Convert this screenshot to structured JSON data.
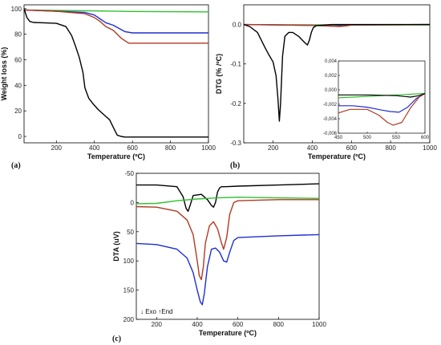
{
  "colors": {
    "black": "#000000",
    "green": "#2fc02f",
    "blue": "#1f2fd0",
    "red": "#b03a22"
  },
  "chart_data": [
    {
      "id": "a",
      "type": "line",
      "panel_label": "(a)",
      "xlabel": "Temperature (ºC)",
      "ylabel": "Weight loss (%)",
      "xlim": [
        30,
        1000
      ],
      "ylim": [
        -5,
        103
      ],
      "xticks": [
        200,
        400,
        600,
        800,
        1000
      ],
      "yticks": [
        0,
        20,
        40,
        60,
        80,
        100
      ],
      "series": [
        {
          "color": "green",
          "x": [
            30,
            200,
            400,
            600,
            800,
            1000
          ],
          "y": [
            99,
            98.6,
            98.2,
            97.8,
            97.6,
            97.5
          ]
        },
        {
          "color": "blue",
          "x": [
            30,
            200,
            350,
            400,
            430,
            460,
            500,
            560,
            600,
            800,
            1000
          ],
          "y": [
            99,
            98,
            97,
            95,
            92,
            89,
            87,
            82,
            81,
            81,
            81
          ]
        },
        {
          "color": "red",
          "x": [
            30,
            200,
            350,
            400,
            430,
            460,
            500,
            540,
            580,
            600,
            800,
            1000
          ],
          "y": [
            99,
            98,
            96,
            93,
            90,
            86,
            83,
            77,
            73,
            73,
            73,
            73
          ]
        },
        {
          "color": "black",
          "x": [
            30,
            45,
            60,
            80,
            120,
            200,
            250,
            280,
            300,
            320,
            340,
            350,
            370,
            390,
            420,
            450,
            480,
            500,
            520,
            540,
            560,
            600,
            800,
            1000
          ],
          "y": [
            100,
            93,
            90,
            89.2,
            89,
            88.5,
            86,
            79,
            71,
            62,
            50,
            38,
            30,
            26,
            21,
            17,
            13,
            7,
            1,
            0,
            -0.5,
            -0.5,
            -0.5,
            -0.5
          ]
        }
      ]
    },
    {
      "id": "b",
      "type": "line",
      "panel_label": "(b)",
      "xlabel": "Temperature (ºC)",
      "ylabel": "DTG (% /ºC)",
      "xlim": [
        50,
        1000
      ],
      "ylim": [
        -0.3,
        0.05
      ],
      "xticks": [
        200,
        400,
        600,
        800,
        1000
      ],
      "yticks": [
        0,
        -0.1,
        -0.2,
        -0.3
      ],
      "ytick_labels": [
        "0.0",
        "-0.1",
        "-0.2",
        "-0.3"
      ],
      "series": [
        {
          "color": "green",
          "x": [
            50,
            400,
            600,
            1000
          ],
          "y": [
            0,
            -0.001,
            -0.001,
            -0.001
          ]
        },
        {
          "color": "blue",
          "x": [
            50,
            400,
            500,
            560,
            600,
            1000
          ],
          "y": [
            0,
            -0.002,
            -0.004,
            -0.003,
            -0.001,
            0
          ]
        },
        {
          "color": "red",
          "x": [
            50,
            400,
            500,
            540,
            580,
            600,
            1000
          ],
          "y": [
            0,
            -0.002,
            -0.004,
            -0.005,
            -0.003,
            -0.001,
            0
          ]
        },
        {
          "color": "black",
          "x": [
            50,
            80,
            120,
            160,
            180,
            200,
            215,
            225,
            232,
            238,
            248,
            260,
            280,
            300,
            330,
            360,
            375,
            385,
            395,
            405,
            420,
            440,
            470,
            500,
            550,
            600,
            1000
          ],
          "y": [
            0,
            -0.005,
            -0.02,
            -0.06,
            -0.078,
            -0.095,
            -0.13,
            -0.19,
            -0.245,
            -0.2,
            -0.08,
            -0.03,
            -0.02,
            -0.02,
            -0.03,
            -0.045,
            -0.052,
            -0.04,
            -0.02,
            -0.008,
            -0.003,
            -0.002,
            -0.001,
            0,
            0,
            0,
            0
          ]
        }
      ],
      "inset": {
        "xlim": [
          450,
          600
        ],
        "ylim": [
          -0.006,
          0.004
        ],
        "xticks": [
          450,
          500,
          550,
          600
        ],
        "yticks": [
          0.004,
          0.002,
          0,
          -0.002,
          -0.004,
          -0.006
        ],
        "ytick_labels": [
          "0,004",
          "0,002",
          "0,000",
          "-0,002",
          "-0,004",
          "-0,006"
        ],
        "series": [
          {
            "color": "green",
            "x": [
              450,
              500,
              550,
              600
            ],
            "y": [
              -0.0011,
              -0.0009,
              -0.0007,
              -0.0005
            ]
          },
          {
            "color": "blue",
            "x": [
              450,
              475,
              500,
              525,
              540,
              555,
              570,
              585,
              600
            ],
            "y": [
              -0.0022,
              -0.0022,
              -0.0024,
              -0.0028,
              -0.003,
              -0.0031,
              -0.0024,
              -0.0012,
              -0.0005
            ]
          },
          {
            "color": "red",
            "x": [
              450,
              470,
              500,
              520,
              535,
              545,
              560,
              575,
              590,
              600
            ],
            "y": [
              -0.0032,
              -0.0027,
              -0.0027,
              -0.0035,
              -0.0045,
              -0.0049,
              -0.0045,
              -0.0025,
              -0.001,
              -0.0005
            ]
          },
          {
            "color": "black",
            "x": [
              450,
              500,
              550,
              575,
              590,
              600
            ],
            "y": [
              -0.0007,
              -0.0007,
              -0.0008,
              -0.001,
              -0.0008,
              -0.0005
            ]
          }
        ]
      }
    },
    {
      "id": "c",
      "type": "line",
      "panel_label": "(c)",
      "xlabel": "Temperature (ºC)",
      "ylabel": "DTA (uV)",
      "xlim": [
        100,
        1000
      ],
      "ylim": [
        -50,
        200
      ],
      "y_inverted": true,
      "xticks": [
        200,
        400,
        600,
        800,
        1000
      ],
      "yticks": [
        -50,
        0,
        50,
        100,
        150,
        200
      ],
      "legend_note": "↓ Exo ↑End",
      "series": [
        {
          "color": "black",
          "x": [
            100,
            200,
            300,
            330,
            345,
            355,
            365,
            380,
            420,
            450,
            470,
            480,
            490,
            500,
            510,
            520,
            540,
            600,
            800,
            1000
          ],
          "y": [
            -30,
            -30,
            -27,
            -10,
            10,
            15,
            5,
            -12,
            -14,
            -5,
            5,
            8,
            0,
            -18,
            -25,
            -27,
            -27,
            -28,
            -30,
            -32
          ]
        },
        {
          "color": "green",
          "x": [
            100,
            200,
            300,
            400,
            500,
            600,
            800,
            1000
          ],
          "y": [
            2,
            1.5,
            -3,
            -6,
            -8,
            -9,
            -8,
            -7
          ]
        },
        {
          "color": "red",
          "x": [
            100,
            200,
            300,
            350,
            380,
            400,
            410,
            420,
            430,
            440,
            460,
            480,
            500,
            520,
            530,
            545,
            560,
            580,
            600,
            800,
            1000
          ],
          "y": [
            7,
            8,
            15,
            30,
            55,
            100,
            125,
            132,
            110,
            70,
            40,
            33,
            45,
            70,
            80,
            60,
            20,
            0,
            -3,
            -5,
            -5
          ]
        },
        {
          "color": "blue",
          "x": [
            100,
            200,
            300,
            350,
            380,
            400,
            415,
            425,
            435,
            450,
            470,
            490,
            510,
            530,
            545,
            560,
            580,
            600,
            800,
            1000
          ],
          "y": [
            70,
            72,
            80,
            95,
            120,
            150,
            170,
            175,
            155,
            110,
            80,
            78,
            85,
            100,
            102,
            85,
            65,
            60,
            57,
            55
          ]
        }
      ]
    }
  ]
}
